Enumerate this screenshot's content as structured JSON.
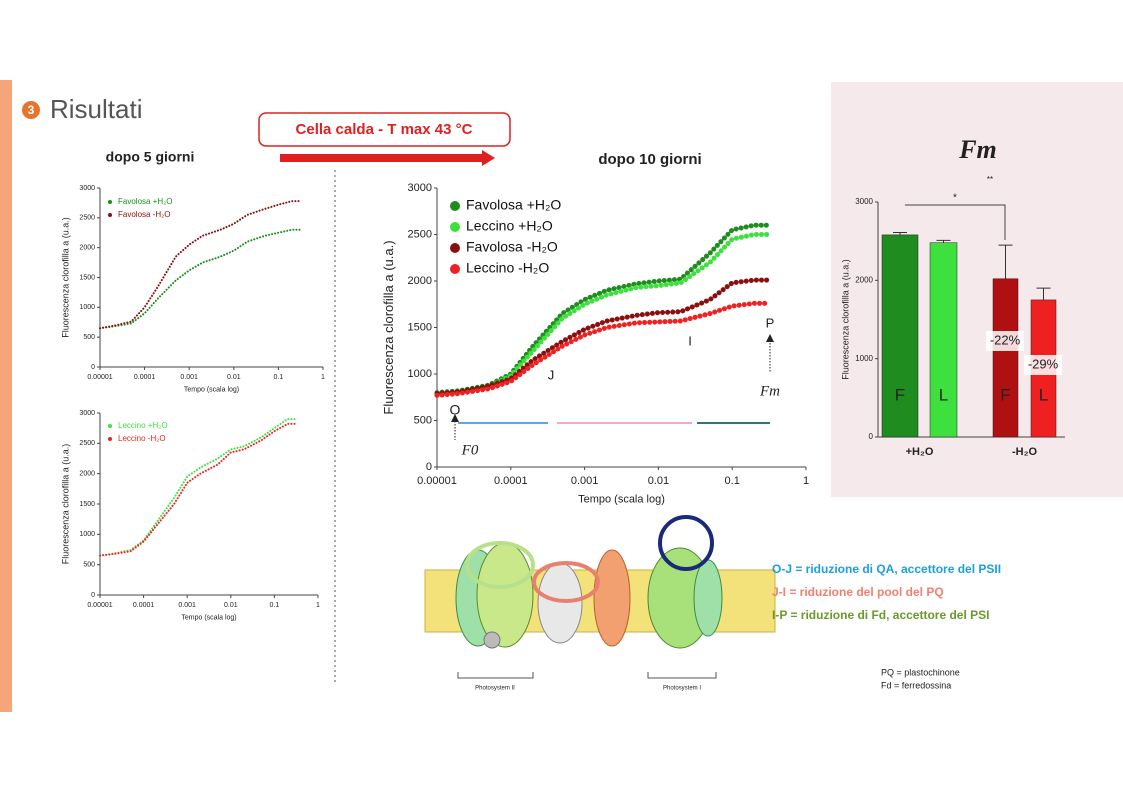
{
  "header": {
    "number": "3",
    "title": "Risultati"
  },
  "banner": "Cella calda - T max 43 °C",
  "legend_notes": [
    "O-J = riduzione di QA, accettore del PSII",
    "J-I = riduzione del pool del PQ",
    "I-P = riduzione di Fd, accettore del PSI"
  ],
  "abbreviations": [
    "PQ = plastochinone",
    "Fd = ferredossina"
  ],
  "diagram": {
    "labels": [
      "Photosystem II",
      "Photosystem I"
    ]
  },
  "chart_data": [
    {
      "type": "line",
      "title": "dopo 5 giorni",
      "x_label": "Tempo (scala log)",
      "y_label": "Fluorescenza clorofilla a (u.a.)",
      "xscale": "log",
      "xlim": [
        1e-05,
        1
      ],
      "xticks": [
        1e-05,
        0.0001,
        0.001,
        0.01,
        0.1,
        1
      ],
      "ylim": [
        0,
        3000
      ],
      "yticks": [
        0,
        500,
        1000,
        1500,
        2000,
        2500,
        3000
      ],
      "legend": "upper left",
      "x": [
        1e-05,
        2e-05,
        5e-05,
        0.0001,
        0.0002,
        0.0005,
        0.001,
        0.002,
        0.005,
        0.01,
        0.02,
        0.05,
        0.1,
        0.2,
        0.3
      ],
      "series": [
        {
          "name": "Favolosa +H₂O",
          "color": "#1e8c1e",
          "values": [
            650,
            680,
            730,
            900,
            1150,
            1450,
            1620,
            1750,
            1850,
            1950,
            2100,
            2200,
            2250,
            2300,
            2300
          ]
        },
        {
          "name": "Favolosa -H₂O",
          "color": "#8b0f0f",
          "values": [
            650,
            690,
            760,
            1000,
            1350,
            1850,
            2050,
            2200,
            2300,
            2400,
            2550,
            2650,
            2720,
            2780,
            2780
          ]
        }
      ]
    },
    {
      "type": "line",
      "x_label": "Tempo (scala log)",
      "y_label": "Fluorescenza clorofilla a (u.a.)",
      "xscale": "log",
      "xlim": [
        1e-05,
        1
      ],
      "xticks": [
        1e-05,
        0.0001,
        0.001,
        0.01,
        0.1,
        1
      ],
      "ylim": [
        0,
        3000
      ],
      "yticks": [
        0,
        500,
        1000,
        1500,
        2000,
        2500,
        3000
      ],
      "legend": "upper left",
      "x": [
        1e-05,
        2e-05,
        5e-05,
        0.0001,
        0.0002,
        0.0005,
        0.001,
        0.002,
        0.005,
        0.01,
        0.02,
        0.05,
        0.1,
        0.2,
        0.3
      ],
      "series": [
        {
          "name": "Leccino +H₂O",
          "color": "#3ee03e",
          "values": [
            650,
            680,
            740,
            900,
            1200,
            1600,
            1950,
            2100,
            2250,
            2400,
            2450,
            2600,
            2750,
            2900,
            2900
          ]
        },
        {
          "name": "Leccino -H₂O",
          "color": "#ee2222",
          "values": [
            650,
            675,
            720,
            880,
            1150,
            1500,
            1850,
            2000,
            2150,
            2350,
            2400,
            2550,
            2700,
            2820,
            2820
          ]
        }
      ]
    },
    {
      "type": "line",
      "title": "dopo 10 giorni",
      "x_label": "Tempo (scala log)",
      "y_label": "Fluorescenza clorofilla a (u.a.)",
      "xscale": "log",
      "xlim": [
        1e-05,
        1
      ],
      "xticks": [
        1e-05,
        0.0001,
        0.001,
        0.01,
        0.1,
        1
      ],
      "ylim": [
        0,
        3000
      ],
      "yticks": [
        0,
        500,
        1000,
        1500,
        2000,
        2500,
        3000
      ],
      "legend": "upper left",
      "x": [
        1e-05,
        2e-05,
        5e-05,
        0.0001,
        0.0002,
        0.0005,
        0.001,
        0.002,
        0.005,
        0.01,
        0.02,
        0.05,
        0.1,
        0.2,
        0.3
      ],
      "series": [
        {
          "name": "Favolosa +H₂O",
          "color": "#1e8c1e",
          "values": [
            800,
            820,
            880,
            1000,
            1300,
            1650,
            1800,
            1900,
            1970,
            2000,
            2020,
            2300,
            2550,
            2600,
            2600
          ]
        },
        {
          "name": "Leccino +H₂O",
          "color": "#3ee03e",
          "values": [
            780,
            800,
            860,
            980,
            1250,
            1600,
            1750,
            1850,
            1930,
            1950,
            1980,
            2200,
            2450,
            2500,
            2500
          ]
        },
        {
          "name": "Favolosa -H₂O",
          "color": "#8b0f0f",
          "values": [
            790,
            810,
            870,
            950,
            1150,
            1350,
            1480,
            1570,
            1630,
            1660,
            1670,
            1800,
            1980,
            2010,
            2010
          ]
        },
        {
          "name": "Leccino -H₂O",
          "color": "#ee2222",
          "values": [
            770,
            790,
            840,
            920,
            1100,
            1300,
            1420,
            1500,
            1550,
            1560,
            1570,
            1650,
            1730,
            1760,
            1760
          ]
        }
      ],
      "annotations": [
        "O",
        "J",
        "I",
        "P",
        "F0",
        "Fm"
      ]
    },
    {
      "type": "bar",
      "title": "Fm",
      "y_label": "Fluorescenza clorofilla a (u.a.)",
      "categories": [
        "F",
        "L",
        "F",
        "L"
      ],
      "groups": [
        "+H₂O",
        "-H₂O"
      ],
      "values": [
        2580,
        2480,
        2020,
        1750
      ],
      "errors": [
        30,
        30,
        430,
        150
      ],
      "colors": [
        "#1e8c1e",
        "#3ee03e",
        "#b01010",
        "#ee2020"
      ],
      "ylim": [
        0,
        3000
      ],
      "yticks": [
        0,
        1000,
        2000,
        3000
      ],
      "annotations": [
        "*",
        "**",
        "-22%",
        "-29%"
      ]
    }
  ]
}
